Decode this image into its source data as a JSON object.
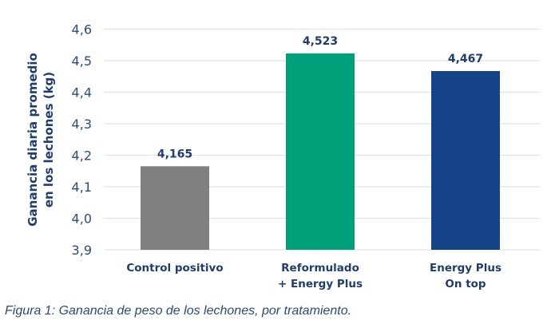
{
  "chart_data": {
    "type": "bar",
    "categories": [
      [
        "Control positivo"
      ],
      [
        "Reformulado",
        "+ Energy Plus"
      ],
      [
        "Energy Plus",
        "On top"
      ]
    ],
    "values": [
      4.165,
      4.523,
      4.467
    ],
    "value_labels": [
      "4,165",
      "4,523",
      "4,467"
    ],
    "colors": [
      "#808080",
      "#00a07a",
      "#154388"
    ],
    "ylabel": [
      "Ganancia diaria promedio",
      "en los lechones (kg)"
    ],
    "xlabel": "",
    "ylim": [
      3.9,
      4.6
    ],
    "yticks": [
      3.9,
      4.0,
      4.1,
      4.2,
      4.3,
      4.4,
      4.5,
      4.6
    ],
    "ytick_labels": [
      "3,9",
      "4,0",
      "4,1",
      "4,2",
      "4,3",
      "4,4",
      "4,5",
      "4,6"
    ],
    "grid": true
  },
  "caption": "Figura 1: Ganancia de peso de los lechones, por tratamiento."
}
